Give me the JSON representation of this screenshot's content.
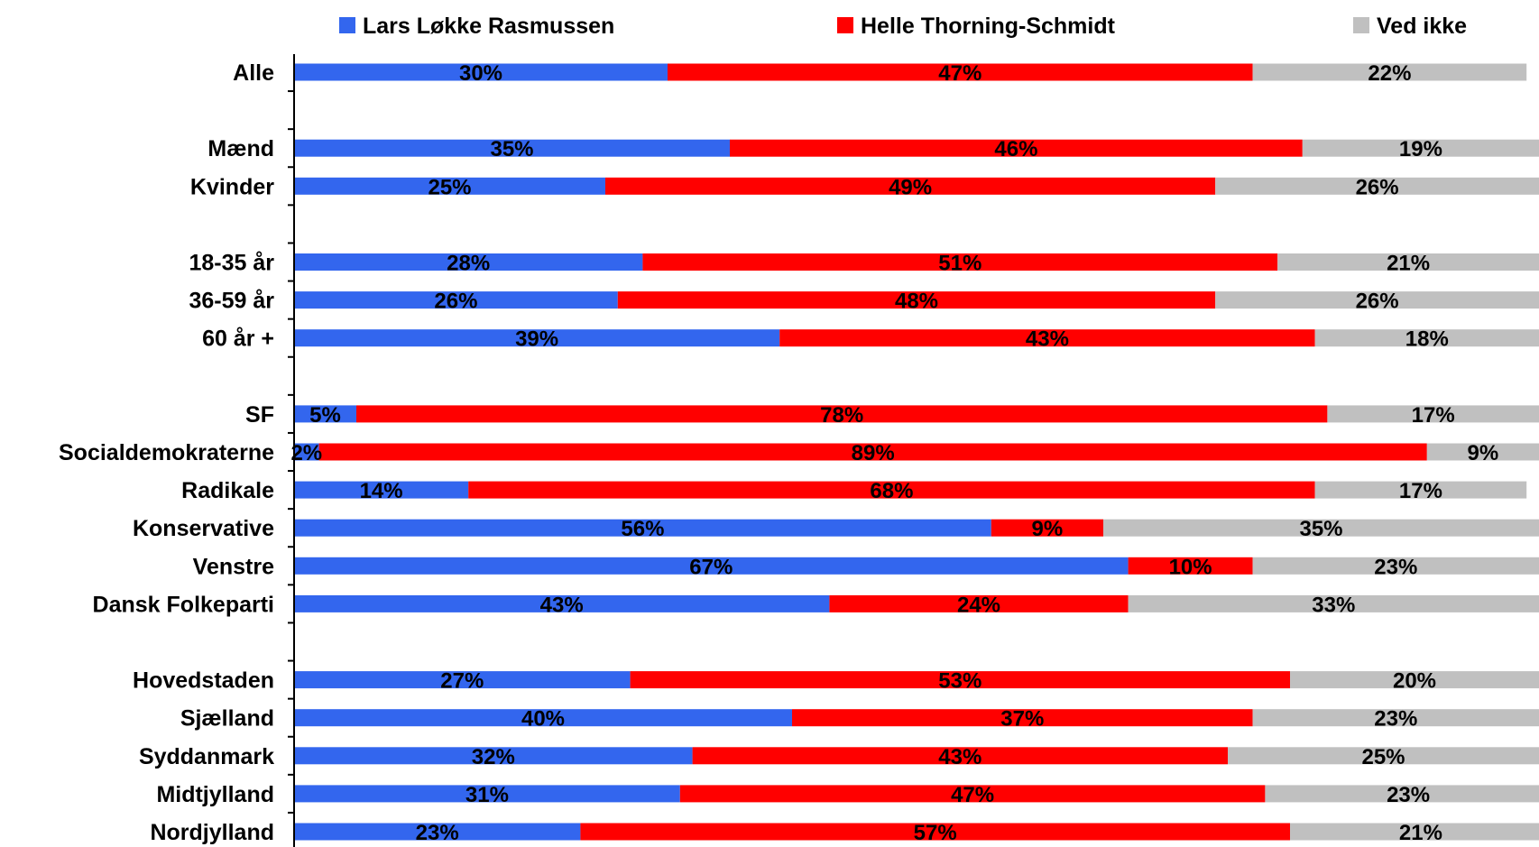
{
  "chart_data": {
    "type": "bar",
    "orientation": "horizontal",
    "stacked": true,
    "legend": {
      "placement": "top"
    },
    "grid": false,
    "xlim": [
      0,
      100
    ],
    "title": "",
    "xlabel": "",
    "ylabel": "",
    "label_suffix": "%",
    "categories": [
      "Alle",
      "",
      "Mænd",
      "Kvinder",
      "",
      "18-35 år",
      "36-59 år",
      "60 år +",
      "",
      "SF",
      "Socialdemokraterne",
      "Radikale",
      "Konservative",
      "Venstre",
      "Dansk Folkeparti",
      "",
      "Hovedstaden",
      "Sjælland",
      "Syddanmark",
      "Midtjylland",
      "Nordjylland"
    ],
    "series": [
      {
        "name": "Lars Løkke Rasmussen",
        "color": "#3366ee",
        "values": [
          30,
          null,
          35,
          25,
          null,
          28,
          26,
          39,
          null,
          5,
          2,
          14,
          56,
          67,
          43,
          null,
          27,
          40,
          32,
          31,
          23
        ]
      },
      {
        "name": "Helle Thorning-Schmidt",
        "color": "#ff0000",
        "values": [
          47,
          null,
          46,
          49,
          null,
          51,
          48,
          43,
          null,
          78,
          89,
          68,
          9,
          10,
          24,
          null,
          53,
          37,
          43,
          47,
          57
        ]
      },
      {
        "name": "Ved ikke",
        "color": "#c0c0c0",
        "values": [
          22,
          null,
          19,
          26,
          null,
          21,
          26,
          18,
          null,
          17,
          9,
          17,
          35,
          23,
          33,
          null,
          20,
          23,
          25,
          23,
          21
        ]
      }
    ]
  }
}
